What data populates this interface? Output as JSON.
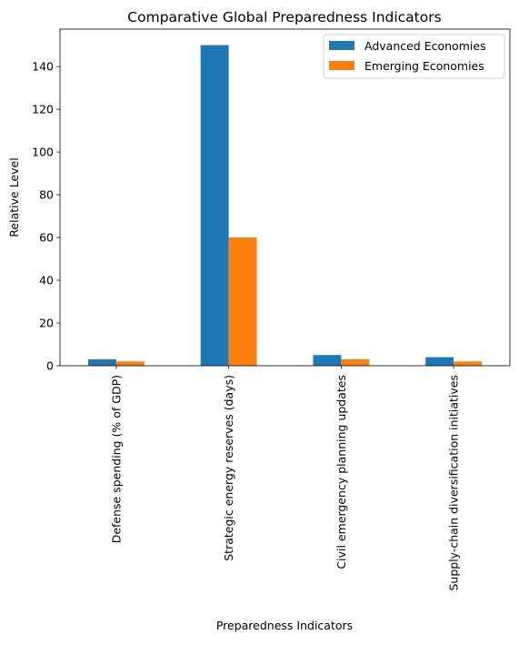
{
  "chart_data": {
    "type": "bar",
    "title": "Comparative Global Preparedness Indicators",
    "xlabel": "Preparedness Indicators",
    "ylabel": "Relative Level",
    "categories": [
      "Defense spending (% of GDP)",
      "Strategic energy reserves (days)",
      "Civil emergency planning updates",
      "Supply-chain diversification initiatives"
    ],
    "series": [
      {
        "name": "Advanced Economies",
        "values": [
          3,
          150,
          5,
          4
        ],
        "color": "#1f77b4"
      },
      {
        "name": "Emerging Economies",
        "values": [
          2,
          60,
          3,
          2
        ],
        "color": "#ff7f0e"
      }
    ],
    "ylim": [
      0,
      157.5
    ],
    "yticks": [
      0,
      20,
      40,
      60,
      80,
      100,
      120,
      140
    ],
    "grid": false,
    "legend_position": "top-right"
  }
}
